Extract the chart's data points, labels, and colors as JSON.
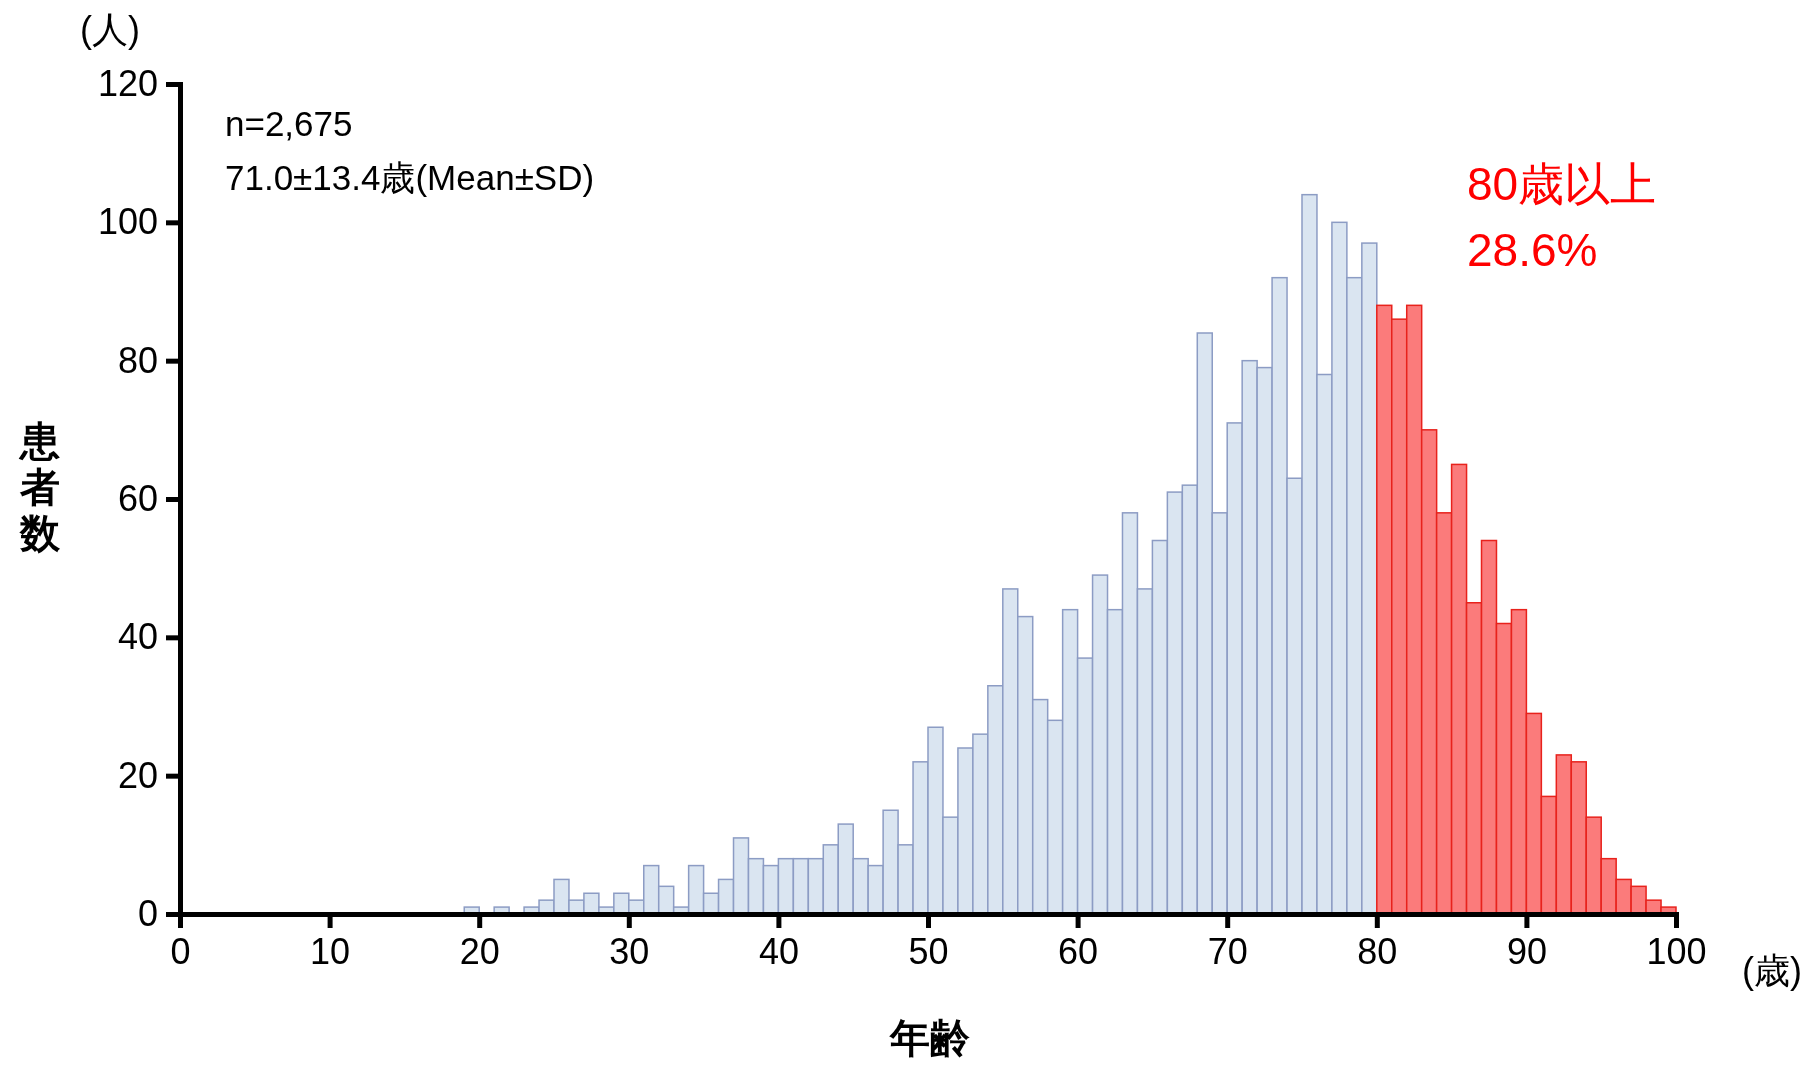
{
  "chart_data": {
    "type": "histogram",
    "xlabel": "年齢",
    "ylabel": "患者数",
    "annotations": [
      "(人)",
      "(歳)",
      "n=2,675",
      "71.0±13.4歳(Mean±SD)",
      "80歳以上",
      "28.6%"
    ],
    "bins": [
      19,
      20,
      21,
      22,
      23,
      24,
      25,
      26,
      27,
      28,
      29,
      30,
      31,
      32,
      33,
      34,
      35,
      36,
      37,
      38,
      39,
      40,
      41,
      42,
      43,
      44,
      45,
      46,
      47,
      48,
      49,
      50,
      51,
      52,
      53,
      54,
      55,
      56,
      57,
      58,
      59,
      60,
      61,
      62,
      63,
      64,
      65,
      66,
      67,
      68,
      69,
      70,
      71,
      72,
      73,
      74,
      75,
      76,
      77,
      78,
      79,
      80,
      81,
      82,
      83,
      84,
      85,
      86,
      87,
      88,
      89,
      90,
      91,
      92,
      93,
      94,
      95,
      96,
      97,
      98,
      99,
      100
    ],
    "values": [
      1,
      0,
      1,
      0,
      1,
      2,
      5,
      2,
      3,
      1,
      3,
      2,
      7,
      4,
      1,
      7,
      3,
      5,
      11,
      8,
      7,
      8,
      8,
      8,
      10,
      13,
      8,
      7,
      15,
      10,
      22,
      27,
      14,
      24,
      26,
      33,
      47,
      43,
      31,
      28,
      44,
      37,
      49,
      44,
      58,
      47,
      54,
      61,
      62,
      84,
      58,
      71,
      80,
      79,
      92,
      63,
      104,
      78,
      100,
      92,
      97,
      88,
      86,
      88,
      70,
      58,
      65,
      45,
      54,
      42,
      44,
      29,
      17,
      23,
      22,
      14,
      8,
      5,
      4,
      2,
      1
    ],
    "colors": [
      "#dae5f1",
      "#dae5f1",
      "#dae5f1",
      "#dae5f1",
      "#dae5f1",
      "#dae5f1",
      "#dae5f1",
      "#dae5f1",
      "#dae5f1",
      "#dae5f1",
      "#dae5f1",
      "#dae5f1",
      "#dae5f1",
      "#dae5f1",
      "#dae5f1",
      "#dae5f1",
      "#dae5f1",
      "#dae5f1",
      "#dae5f1",
      "#dae5f1",
      "#dae5f1",
      "#dae5f1",
      "#dae5f1",
      "#dae5f1",
      "#dae5f1",
      "#dae5f1",
      "#dae5f1",
      "#dae5f1",
      "#dae5f1",
      "#dae5f1",
      "#dae5f1",
      "#dae5f1",
      "#dae5f1",
      "#dae5f1",
      "#dae5f1",
      "#dae5f1",
      "#dae5f1",
      "#dae5f1",
      "#dae5f1",
      "#dae5f1",
      "#dae5f1",
      "#dae5f1",
      "#dae5f1",
      "#dae5f1",
      "#dae5f1",
      "#dae5f1",
      "#dae5f1",
      "#dae5f1",
      "#dae5f1",
      "#dae5f1",
      "#dae5f1",
      "#dae5f1",
      "#dae5f1",
      "#dae5f1",
      "#dae5f1",
      "#dae5f1",
      "#dae5f1",
      "#dae5f1",
      "#dae5f1",
      "#dae5f1",
      "#dae5f1",
      "#fb7b7b",
      "#fb7b7b",
      "#fb7b7b",
      "#fb7b7b",
      "#fb7b7b",
      "#fb7b7b",
      "#fb7b7b",
      "#fb7b7b",
      "#fb7b7b",
      "#fb7b7b",
      "#fb7b7b",
      "#fb7b7b",
      "#fb7b7b",
      "#fb7b7b",
      "#fb7b7b",
      "#fb7b7b",
      "#fb7b7b",
      "#fb7b7b",
      "#fb7b7b",
      "#fb7b7b"
    ],
    "xlim": [
      0,
      100
    ],
    "xticks": [
      0,
      10,
      20,
      30,
      40,
      50,
      60,
      70,
      80,
      90,
      100
    ],
    "ylim": [
      0,
      120
    ],
    "yticks": [
      0,
      20,
      40,
      60,
      80,
      100,
      120
    ]
  }
}
